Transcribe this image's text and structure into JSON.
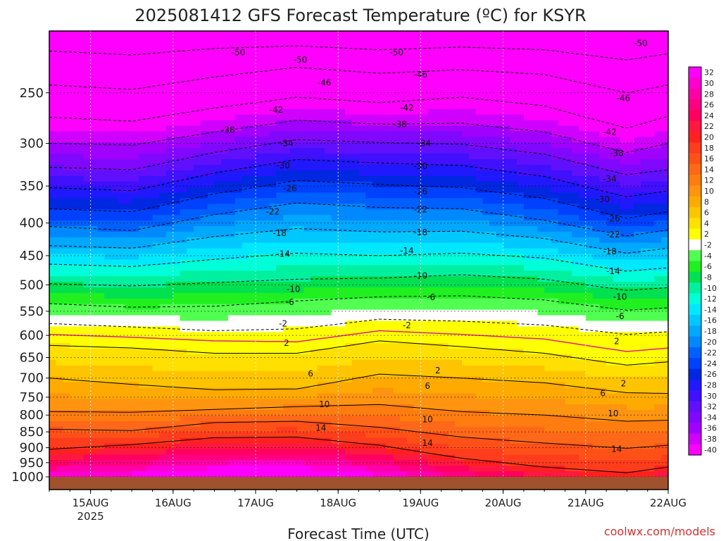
{
  "title": "2025081412 GFS Forecast Temperature (ºC) for KSYR",
  "credit": "coolwx.com/models",
  "chart_data": {
    "type": "heatmap",
    "title": "2025081412 GFS Forecast Temperature (ºC) for KSYR",
    "xlabel": "Forecast Time (UTC)",
    "ylabel": "",
    "x_ticks": [
      {
        "label": "15AUG",
        "sub": "2025",
        "hour": 12
      },
      {
        "label": "16AUG",
        "hour": 36
      },
      {
        "label": "17AUG",
        "hour": 60
      },
      {
        "label": "18AUG",
        "hour": 84
      },
      {
        "label": "19AUG",
        "hour": 108
      },
      {
        "label": "20AUG",
        "hour": 132
      },
      {
        "label": "21AUG",
        "hour": 156
      },
      {
        "label": "22AUG",
        "hour": 180
      }
    ],
    "x_range_hours": [
      0,
      180
    ],
    "y_ticks": [
      "250",
      "300",
      "350",
      "400",
      "450",
      "500",
      "550",
      "600",
      "650",
      "700",
      "750",
      "800",
      "850",
      "900",
      "950",
      "1000"
    ],
    "y_range_hPa": [
      200,
      1000
    ],
    "y_scale": "log",
    "grid": true,
    "colorbar": {
      "levels": [
        32,
        30,
        28,
        26,
        24,
        22,
        20,
        18,
        16,
        14,
        12,
        10,
        8,
        6,
        4,
        2,
        -2,
        -4,
        -6,
        -8,
        -10,
        -12,
        -14,
        -16,
        -18,
        -20,
        -22,
        -24,
        -26,
        -28,
        -30,
        -32,
        -34,
        -36,
        -38,
        -40
      ],
      "colors": [
        "#ff00ff",
        "#ff00d0",
        "#ff00a8",
        "#ff0080",
        "#ff0060",
        "#ff1840",
        "#ff2020",
        "#ff3c1c",
        "#ff5018",
        "#ff6818",
        "#ff7c10",
        "#ff9410",
        "#ffaa00",
        "#ffc400",
        "#ffe000",
        "#ffff00",
        "#ffffff",
        "#50ff50",
        "#20f020",
        "#00e050",
        "#00f0a0",
        "#00ffd8",
        "#00e8ff",
        "#00c8ff",
        "#00a8ff",
        "#0088ff",
        "#0060ff",
        "#0040ff",
        "#0028e0",
        "#2018ff",
        "#4010ff",
        "#6010ff",
        "#8008ff",
        "#a000ff",
        "#d000ff",
        "#ff00ff"
      ]
    },
    "isotherms": [
      {
        "value": -50,
        "pressure": [
          215,
          218,
          213,
          211,
          214,
          212,
          214,
          222,
          217
        ]
      },
      {
        "value": -46,
        "pressure": [
          243,
          247,
          236,
          228,
          233,
          230,
          234,
          250,
          243
        ]
      },
      {
        "value": -42,
        "pressure": [
          273,
          277,
          264,
          254,
          259,
          254,
          262,
          284,
          272
        ]
      },
      {
        "value": -38,
        "pressure": [
          300,
          302,
          288,
          276,
          280,
          279,
          288,
          310,
          300
        ]
      },
      {
        "value": -34,
        "pressure": [
          327,
          330,
          310,
          296,
          299,
          301,
          312,
          336,
          330
        ]
      },
      {
        "value": -30,
        "pressure": [
          352,
          356,
          334,
          318,
          322,
          325,
          338,
          364,
          356
        ]
      },
      {
        "value": -26,
        "pressure": [
          380,
          384,
          360,
          343,
          348,
          352,
          366,
          393,
          384
        ]
      },
      {
        "value": -22,
        "pressure": [
          405,
          411,
          388,
          372,
          378,
          380,
          396,
          419,
          410
        ]
      },
      {
        "value": -18,
        "pressure": [
          434,
          438,
          420,
          408,
          413,
          412,
          423,
          446,
          438
        ]
      },
      {
        "value": -14,
        "pressure": [
          464,
          468,
          456,
          446,
          450,
          446,
          454,
          476,
          470
        ]
      },
      {
        "value": -10,
        "pressure": [
          498,
          502,
          496,
          490,
          488,
          482,
          490,
          510,
          505
        ]
      },
      {
        "value": -6,
        "pressure": [
          535,
          542,
          540,
          530,
          522,
          520,
          528,
          548,
          543
        ]
      },
      {
        "value": -2,
        "pressure": [
          575,
          582,
          590,
          586,
          566,
          570,
          578,
          598,
          592
        ]
      },
      {
        "value": 2,
        "pressure": [
          622,
          628,
          640,
          640,
          612,
          625,
          640,
          668,
          660
        ]
      },
      {
        "value": 6,
        "pressure": [
          700,
          716,
          730,
          728,
          690,
          700,
          712,
          738,
          740
        ]
      },
      {
        "value": 10,
        "pressure": [
          790,
          792,
          784,
          776,
          770,
          790,
          800,
          818,
          815
        ]
      },
      {
        "value": 14,
        "pressure": [
          842,
          846,
          822,
          818,
          836,
          866,
          885,
          902,
          892
        ]
      },
      {
        "value": 18,
        "pressure": [
          905,
          890,
          868,
          866,
          892,
          935,
          965,
          985,
          965
        ]
      }
    ],
    "contour_labels": [
      {
        "t": -50,
        "h": 55,
        "p": 216
      },
      {
        "t": -50,
        "h": 73,
        "p": 222
      },
      {
        "t": -46,
        "h": 80,
        "p": 241
      },
      {
        "t": -42,
        "h": 66,
        "p": 266
      },
      {
        "t": -38,
        "h": 52,
        "p": 286
      },
      {
        "t": -34,
        "h": 69,
        "p": 300
      },
      {
        "t": -30,
        "h": 68,
        "p": 325
      },
      {
        "t": -26,
        "h": 70,
        "p": 353
      },
      {
        "t": -22,
        "h": 65,
        "p": 384
      },
      {
        "t": -18,
        "h": 67,
        "p": 415
      },
      {
        "t": -14,
        "h": 68,
        "p": 447
      },
      {
        "t": -10,
        "h": 71,
        "p": 508
      },
      {
        "t": -6,
        "h": 70,
        "p": 532
      },
      {
        "t": -2,
        "h": 68,
        "p": 575
      },
      {
        "t": 2,
        "h": 69,
        "p": 617
      },
      {
        "t": 6,
        "h": 76,
        "p": 689
      },
      {
        "t": 10,
        "h": 80,
        "p": 770
      },
      {
        "t": 14,
        "h": 79,
        "p": 838
      },
      {
        "t": -50,
        "h": 101,
        "p": 216
      },
      {
        "t": -46,
        "h": 108,
        "p": 234
      },
      {
        "t": -42,
        "h": 104,
        "p": 264
      },
      {
        "t": -38,
        "h": 102,
        "p": 280
      },
      {
        "t": -34,
        "h": 109,
        "p": 300
      },
      {
        "t": -30,
        "h": 108,
        "p": 326
      },
      {
        "t": -26,
        "h": 108,
        "p": 357
      },
      {
        "t": -22,
        "h": 108,
        "p": 381
      },
      {
        "t": -18,
        "h": 108,
        "p": 414
      },
      {
        "t": -14,
        "h": 104,
        "p": 442
      },
      {
        "t": -10,
        "h": 108,
        "p": 484
      },
      {
        "t": -6,
        "h": 111,
        "p": 523
      },
      {
        "t": -2,
        "h": 104,
        "p": 579
      },
      {
        "t": 2,
        "h": 113,
        "p": 681
      },
      {
        "t": 6,
        "h": 110,
        "p": 720
      },
      {
        "t": 10,
        "h": 110,
        "p": 813
      },
      {
        "t": 14,
        "h": 110,
        "p": 885
      },
      {
        "t": -50,
        "h": 172,
        "p": 209
      },
      {
        "t": -46,
        "h": 167,
        "p": 255
      },
      {
        "t": -42,
        "h": 163,
        "p": 288
      },
      {
        "t": -38,
        "h": 165,
        "p": 311
      },
      {
        "t": -34,
        "h": 163,
        "p": 341
      },
      {
        "t": -30,
        "h": 161,
        "p": 367
      },
      {
        "t": -26,
        "h": 164,
        "p": 394
      },
      {
        "t": -22,
        "h": 164,
        "p": 417
      },
      {
        "t": -18,
        "h": 163,
        "p": 443
      },
      {
        "t": -14,
        "h": 164,
        "p": 476
      },
      {
        "t": -10,
        "h": 166,
        "p": 522
      },
      {
        "t": -6,
        "h": 166,
        "p": 560
      },
      {
        "t": 2,
        "h": 165,
        "p": 613
      },
      {
        "t": 2,
        "h": 167,
        "p": 714
      },
      {
        "t": 6,
        "h": 161,
        "p": 740
      },
      {
        "t": 10,
        "h": 164,
        "p": 795
      },
      {
        "t": 14,
        "h": 165,
        "p": 905
      }
    ],
    "freezing_line_pressure": [
      598,
      604,
      612,
      614,
      590,
      598,
      608,
      636,
      628
    ],
    "data_hours": [
      0,
      24,
      48,
      72,
      96,
      120,
      144,
      168,
      180
    ]
  }
}
